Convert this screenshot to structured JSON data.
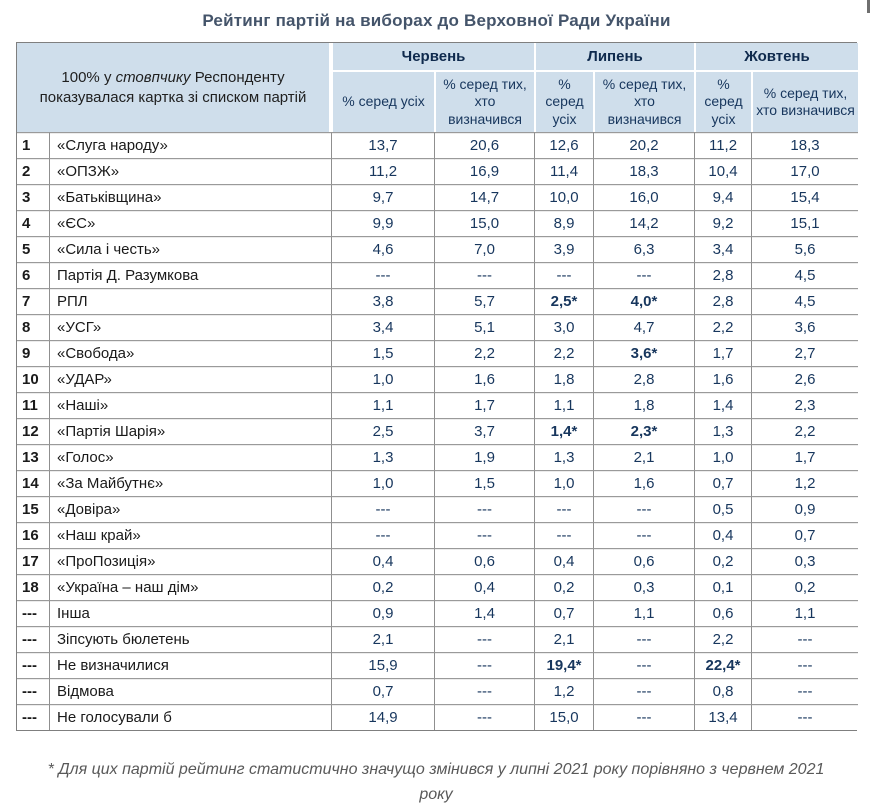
{
  "title": "Рейтинг партій на виборах до Верховної Ради України",
  "colors": {
    "header_bg": "#cfdeeb",
    "header_month_text": "#0f2a4d",
    "header_sub_text": "#17365d",
    "title_text": "#44546a",
    "value_text": "#17365d",
    "body_text": "#1a1a1a",
    "footnote_text": "#595959",
    "grid_line": "#8f8f8f"
  },
  "table": {
    "corner": {
      "pre": "100% у ",
      "italic": "стовпчику",
      "post": " Респонденту показувалася картка зі списком партій"
    },
    "months": [
      "Червень",
      "Липень",
      "Жовтень"
    ],
    "sub_all": "% серед усіх",
    "sub_det": "% серед тих, хто визначився",
    "rows": [
      {
        "num": "1",
        "party": "«Слуга народу»",
        "values": [
          "13,7",
          "20,6",
          "12,6",
          "20,2",
          "11,2",
          "18,3"
        ]
      },
      {
        "num": "2",
        "party": "«ОПЗЖ»",
        "values": [
          "11,2",
          "16,9",
          "11,4",
          "18,3",
          "10,4",
          "17,0"
        ]
      },
      {
        "num": "3",
        "party": "«Батьківщина»",
        "values": [
          "9,7",
          "14,7",
          "10,0",
          "16,0",
          "9,4",
          "15,4"
        ]
      },
      {
        "num": "4",
        "party": "«ЄС»",
        "values": [
          "9,9",
          "15,0",
          "8,9",
          "14,2",
          "9,2",
          "15,1"
        ]
      },
      {
        "num": "5",
        "party": "«Сила і честь»",
        "values": [
          "4,6",
          "7,0",
          "3,9",
          "6,3",
          "3,4",
          "5,6"
        ]
      },
      {
        "num": "6",
        "party": "Партія Д. Разумкова",
        "values": [
          "---",
          "---",
          "---",
          "---",
          "2,8",
          "4,5"
        ]
      },
      {
        "num": "7",
        "party": "РПЛ",
        "values": [
          "3,8",
          "5,7",
          "2,5*",
          "4,0*",
          "2,8",
          "4,5"
        ]
      },
      {
        "num": "8",
        "party": "«УСГ»",
        "values": [
          "3,4",
          "5,1",
          "3,0",
          "4,7",
          "2,2",
          "3,6"
        ]
      },
      {
        "num": "9",
        "party": "«Свобода»",
        "values": [
          "1,5",
          "2,2",
          "2,2",
          "3,6*",
          "1,7",
          "2,7"
        ]
      },
      {
        "num": "10",
        "party": "«УДАР»",
        "values": [
          "1,0",
          "1,6",
          "1,8",
          "2,8",
          "1,6",
          "2,6"
        ]
      },
      {
        "num": "11",
        "party": "«Наші»",
        "values": [
          "1,1",
          "1,7",
          "1,1",
          "1,8",
          "1,4",
          "2,3"
        ]
      },
      {
        "num": "12",
        "party": "«Партія Шарія»",
        "values": [
          "2,5",
          "3,7",
          "1,4*",
          "2,3*",
          "1,3",
          "2,2"
        ]
      },
      {
        "num": "13",
        "party": "«Голос»",
        "values": [
          "1,3",
          "1,9",
          "1,3",
          "2,1",
          "1,0",
          "1,7"
        ]
      },
      {
        "num": "14",
        "party": "«За Майбутнє»",
        "values": [
          "1,0",
          "1,5",
          "1,0",
          "1,6",
          "0,7",
          "1,2"
        ]
      },
      {
        "num": "15",
        "party": "«Довіра»",
        "values": [
          "---",
          "---",
          "---",
          "---",
          "0,5",
          "0,9"
        ]
      },
      {
        "num": "16",
        "party": "«Наш край»",
        "values": [
          "---",
          "---",
          "---",
          "---",
          "0,4",
          "0,7"
        ]
      },
      {
        "num": "17",
        "party": "«ПроПозиція»",
        "values": [
          "0,4",
          "0,6",
          "0,4",
          "0,6",
          "0,2",
          "0,3"
        ]
      },
      {
        "num": "18",
        "party": "«Україна – наш дім»",
        "values": [
          "0,2",
          "0,4",
          "0,2",
          "0,3",
          "0,1",
          "0,2"
        ]
      },
      {
        "num": "---",
        "party": "Інша",
        "values": [
          "0,9",
          "1,4",
          "0,7",
          "1,1",
          "0,6",
          "1,1"
        ]
      },
      {
        "num": "---",
        "party": "Зіпсують бюлетень",
        "values": [
          "2,1",
          "---",
          "2,1",
          "---",
          "2,2",
          "---"
        ]
      },
      {
        "num": "---",
        "party": "Не визначилися",
        "values": [
          "15,9",
          "---",
          "19,4*",
          "---",
          "22,4*",
          "---"
        ]
      },
      {
        "num": "---",
        "party": "Відмова",
        "values": [
          "0,7",
          "---",
          "1,2",
          "---",
          "0,8",
          "---"
        ]
      },
      {
        "num": "---",
        "party": "Не голосували б",
        "values": [
          "14,9",
          "---",
          "15,0",
          "---",
          "13,4",
          "---"
        ]
      }
    ]
  },
  "footnote": "* Для цих партій рейтинг статистично значущо змінився у липні 2021 року порівняно з червнем 2021 року"
}
